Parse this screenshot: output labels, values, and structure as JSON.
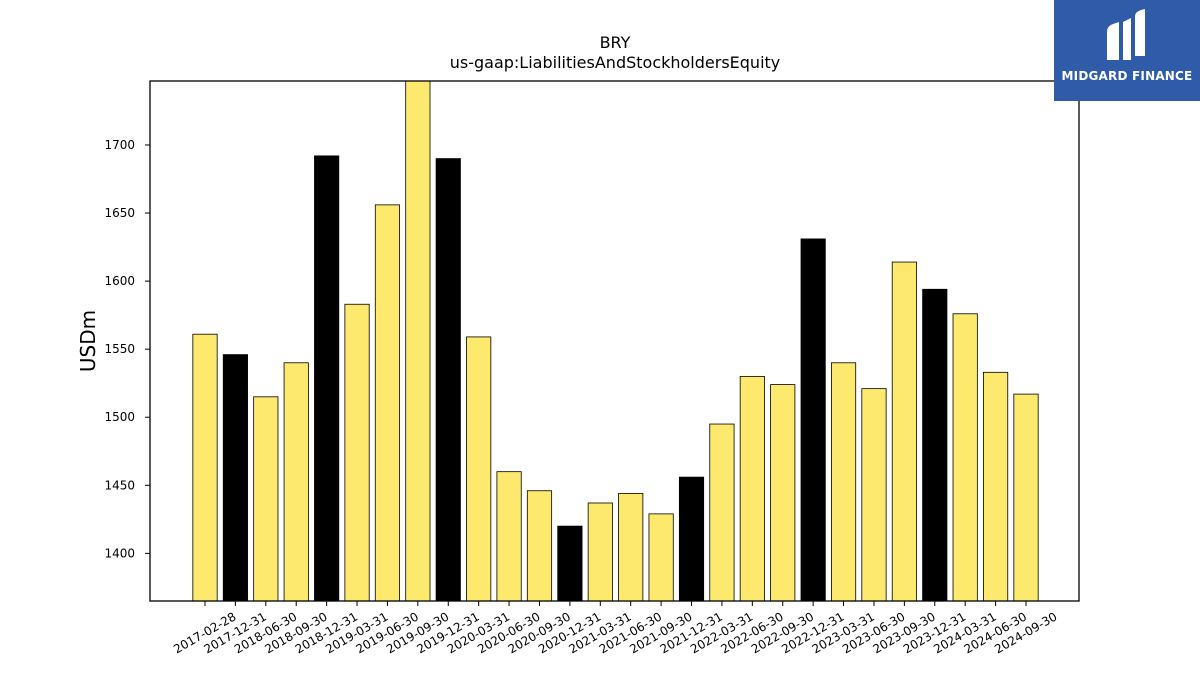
{
  "logo": {
    "text": "MIDGARD FINANCE",
    "color": "#2f5ba8"
  },
  "chart_data": {
    "type": "bar",
    "title": "BRY",
    "subtitle": "us-gaap:LiabilitiesAndStockholdersEquity",
    "xlabel": "",
    "ylabel": "USDm",
    "ylim": [
      1365,
      1747
    ],
    "yticks": [
      1400,
      1450,
      1500,
      1550,
      1600,
      1650,
      1700
    ],
    "grid": false,
    "colors": {
      "yellow": "#fde96e",
      "black": "#000000"
    },
    "categories": [
      "2017-02-28",
      "2017-12-31",
      "2018-06-30",
      "2018-09-30",
      "2018-12-31",
      "2019-03-31",
      "2019-06-30",
      "2019-09-30",
      "2019-12-31",
      "2020-03-31",
      "2020-06-30",
      "2020-09-30",
      "2020-12-31",
      "2021-03-31",
      "2021-06-30",
      "2021-09-30",
      "2021-12-31",
      "2022-03-31",
      "2022-06-30",
      "2022-09-30",
      "2022-12-31",
      "2023-03-31",
      "2023-06-30",
      "2023-09-30",
      "2023-12-31",
      "2024-03-31",
      "2024-06-30",
      "2024-09-30"
    ],
    "values": [
      1561,
      1546,
      1515,
      1540,
      1692,
      1583,
      1656,
      1750,
      1690,
      1559,
      1460,
      1446,
      1420,
      1437,
      1444,
      1429,
      1456,
      1495,
      1530,
      1524,
      1631,
      1540,
      1521,
      1614,
      1594,
      1576,
      1533,
      1517
    ],
    "bar_colors": [
      "yellow",
      "black",
      "yellow",
      "yellow",
      "black",
      "yellow",
      "yellow",
      "yellow",
      "black",
      "yellow",
      "yellow",
      "yellow",
      "black",
      "yellow",
      "yellow",
      "yellow",
      "black",
      "yellow",
      "yellow",
      "yellow",
      "black",
      "yellow",
      "yellow",
      "yellow",
      "black",
      "yellow",
      "yellow",
      "yellow"
    ]
  }
}
